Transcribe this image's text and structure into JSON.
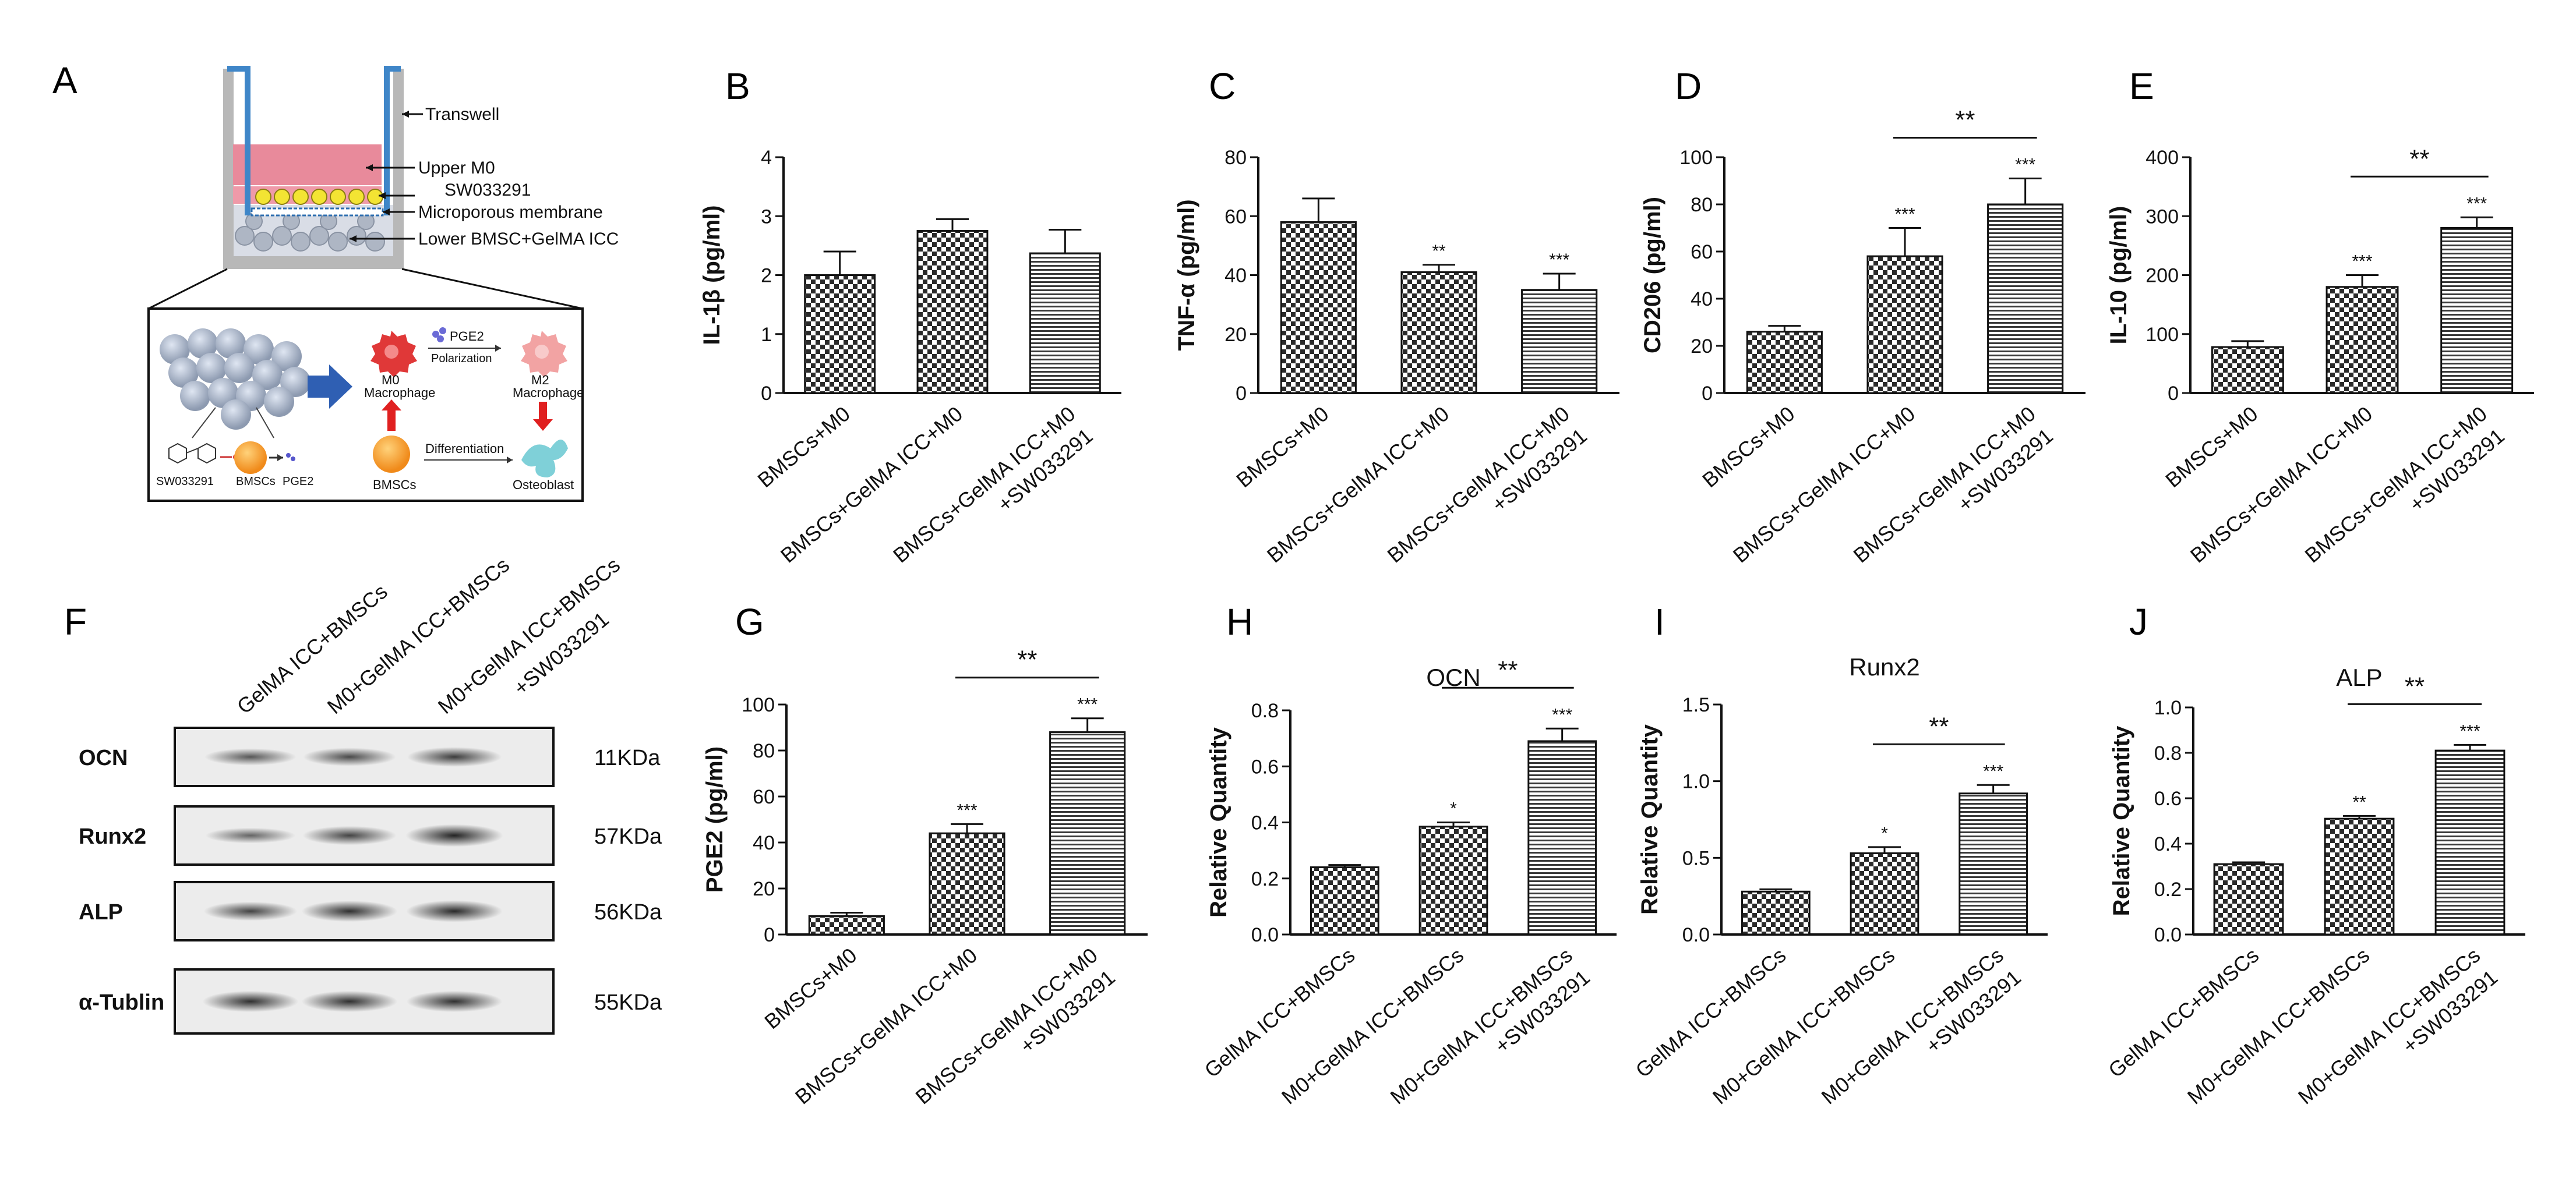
{
  "panel_labels": [
    "A",
    "B",
    "C",
    "D",
    "E",
    "F",
    "G",
    "H",
    "I",
    "J"
  ],
  "diagram": {
    "callouts": [
      "Transwell",
      "Upper M0",
      "SW033291",
      "Microporous membrane",
      "Lower BMSC+GelMA ICC"
    ],
    "inset": {
      "pge2": "PGE2",
      "polarization": "Polarization",
      "m0": "M0",
      "m0_sub": "Macrophage",
      "m2": "M2",
      "m2_sub": "Macrophage",
      "differentiation": "Differentiation",
      "bmscs": "BMSCs",
      "osteoblast": "Osteoblast",
      "bottom_labels": [
        "SW033291",
        "BMSCs",
        "PGE2"
      ]
    }
  },
  "western_blot": {
    "lane_labels": [
      "GelMA ICC+BMSCs",
      "M0+GelMA ICC+BMSCs",
      "M0+GelMA ICC+BMSCs",
      "+SW033291"
    ],
    "rows": [
      {
        "label": "OCN",
        "kda": "11KDa",
        "bands": [
          0.55,
          0.65,
          0.75
        ]
      },
      {
        "label": "Runx2",
        "kda": "57KDa",
        "bands": [
          0.45,
          0.7,
          0.95
        ]
      },
      {
        "label": "ALP",
        "kda": "56KDa",
        "bands": [
          0.7,
          0.85,
          0.9
        ]
      },
      {
        "label": "α-Tublin",
        "kda": "55KDa",
        "bands": [
          0.85,
          0.85,
          0.85
        ]
      }
    ]
  },
  "chart_data": [
    {
      "panel": "B",
      "type": "bar",
      "title": "",
      "ylabel": "IL-1β (pg/ml)",
      "ylim": [
        0,
        4
      ],
      "yticks": [
        "0",
        "1",
        "2",
        "3",
        "4"
      ],
      "categories": [
        "BMSCs+M0",
        "BMSCs+GelMA ICC+M0",
        "BMSCs+GelMA ICC+M0 +SW033291"
      ],
      "values": [
        2.0,
        2.75,
        2.37
      ],
      "errors": [
        0.4,
        0.2,
        0.4
      ],
      "stars": [
        "",
        "",
        ""
      ],
      "brackets": []
    },
    {
      "panel": "C",
      "type": "bar",
      "title": "",
      "ylabel": "TNF-α (pg/ml)",
      "ylim": [
        0,
        80
      ],
      "yticks": [
        "0",
        "20",
        "40",
        "60",
        "80"
      ],
      "categories": [
        "BMSCs+M0",
        "BMSCs+GelMA ICC+M0",
        "BMSCs+GelMA ICC+M0 +SW033291"
      ],
      "values": [
        58,
        41,
        35
      ],
      "errors": [
        8,
        2.5,
        5.5
      ],
      "stars": [
        "",
        "**",
        "***"
      ],
      "brackets": []
    },
    {
      "panel": "D",
      "type": "bar",
      "title": "",
      "ylabel": "CD206 (pg/ml)",
      "ylim": [
        0,
        100
      ],
      "yticks": [
        "0",
        "20",
        "40",
        "60",
        "80",
        "100"
      ],
      "categories": [
        "BMSCs+M0",
        "BMSCs+GelMA ICC+M0",
        "BMSCs+GelMA ICC+M0 +SW033291"
      ],
      "values": [
        26,
        58,
        80
      ],
      "errors": [
        2.5,
        12,
        11
      ],
      "stars": [
        "",
        "***",
        "***"
      ],
      "brackets": [
        {
          "from": 1,
          "to": 2,
          "label": "**"
        }
      ]
    },
    {
      "panel": "E",
      "type": "bar",
      "title": "",
      "ylabel": "IL-10 (pg/ml)",
      "ylim": [
        0,
        400
      ],
      "yticks": [
        "0",
        "100",
        "200",
        "300",
        "400"
      ],
      "categories": [
        "BMSCs+M0",
        "BMSCs+GelMA ICC+M0",
        "BMSCs+GelMA ICC+M0 +SW033291"
      ],
      "values": [
        78,
        180,
        280
      ],
      "errors": [
        10,
        20,
        18
      ],
      "stars": [
        "",
        "***",
        "***"
      ],
      "brackets": [
        {
          "from": 1,
          "to": 2,
          "label": "**"
        }
      ]
    },
    {
      "panel": "G",
      "type": "bar",
      "title": "",
      "ylabel": "PGE2 (pg/ml)",
      "ylim": [
        0,
        100
      ],
      "yticks": [
        "0",
        "20",
        "40",
        "60",
        "80",
        "100"
      ],
      "categories": [
        "BMSCs+M0",
        "BMSCs+GelMA ICC+M0",
        "BMSCs+GelMA ICC+M0 +SW033291"
      ],
      "values": [
        8,
        44,
        88
      ],
      "errors": [
        1.5,
        4,
        6
      ],
      "stars": [
        "",
        "***",
        "***"
      ],
      "brackets": [
        {
          "from": 1,
          "to": 2,
          "label": "**"
        }
      ]
    },
    {
      "panel": "H",
      "type": "bar",
      "title": "OCN",
      "ylabel": "Relative Quantity",
      "ylim": [
        0,
        0.8
      ],
      "yticks": [
        "0.0",
        "0.2",
        "0.4",
        "0.6",
        "0.8"
      ],
      "categories": [
        "GelMA ICC+BMSCs",
        "M0+GelMA ICC+BMSCs",
        "M0+GelMA ICC+BMSCs +SW033291"
      ],
      "values": [
        0.24,
        0.385,
        0.69
      ],
      "errors": [
        0.008,
        0.015,
        0.045
      ],
      "stars": [
        "",
        "*",
        "***"
      ],
      "brackets": [
        {
          "from": 1,
          "to": 2,
          "label": "**"
        }
      ]
    },
    {
      "panel": "I",
      "type": "bar",
      "title": "Runx2",
      "ylabel": "Relative Quantity",
      "ylim": [
        0,
        1.5
      ],
      "yticks": [
        "0.0",
        "0.5",
        "1.0",
        "1.5"
      ],
      "categories": [
        "GelMA ICC+BMSCs",
        "M0+GelMA ICC+BMSCs",
        "M0+GelMA ICC+BMSCs +SW033291"
      ],
      "values": [
        0.28,
        0.53,
        0.92
      ],
      "errors": [
        0.015,
        0.04,
        0.055
      ],
      "stars": [
        "",
        "*",
        "***"
      ],
      "brackets": [
        {
          "from": 1,
          "to": 2,
          "label": "**"
        }
      ]
    },
    {
      "panel": "J",
      "type": "bar",
      "title": "ALP",
      "ylabel": "Relative Quantity",
      "ylim": [
        0,
        1.0
      ],
      "yticks": [
        "0.0",
        "0.2",
        "0.4",
        "0.6",
        "0.8",
        "1.0"
      ],
      "categories": [
        "GelMA ICC+BMSCs",
        "M0+GelMA ICC+BMSCs",
        "M0+GelMA ICC+BMSCs +SW033291"
      ],
      "values": [
        0.31,
        0.51,
        0.81
      ],
      "errors": [
        0.008,
        0.012,
        0.025
      ],
      "stars": [
        "",
        "**",
        "***"
      ],
      "brackets": [
        {
          "from": 1,
          "to": 2,
          "label": "**"
        }
      ]
    }
  ]
}
